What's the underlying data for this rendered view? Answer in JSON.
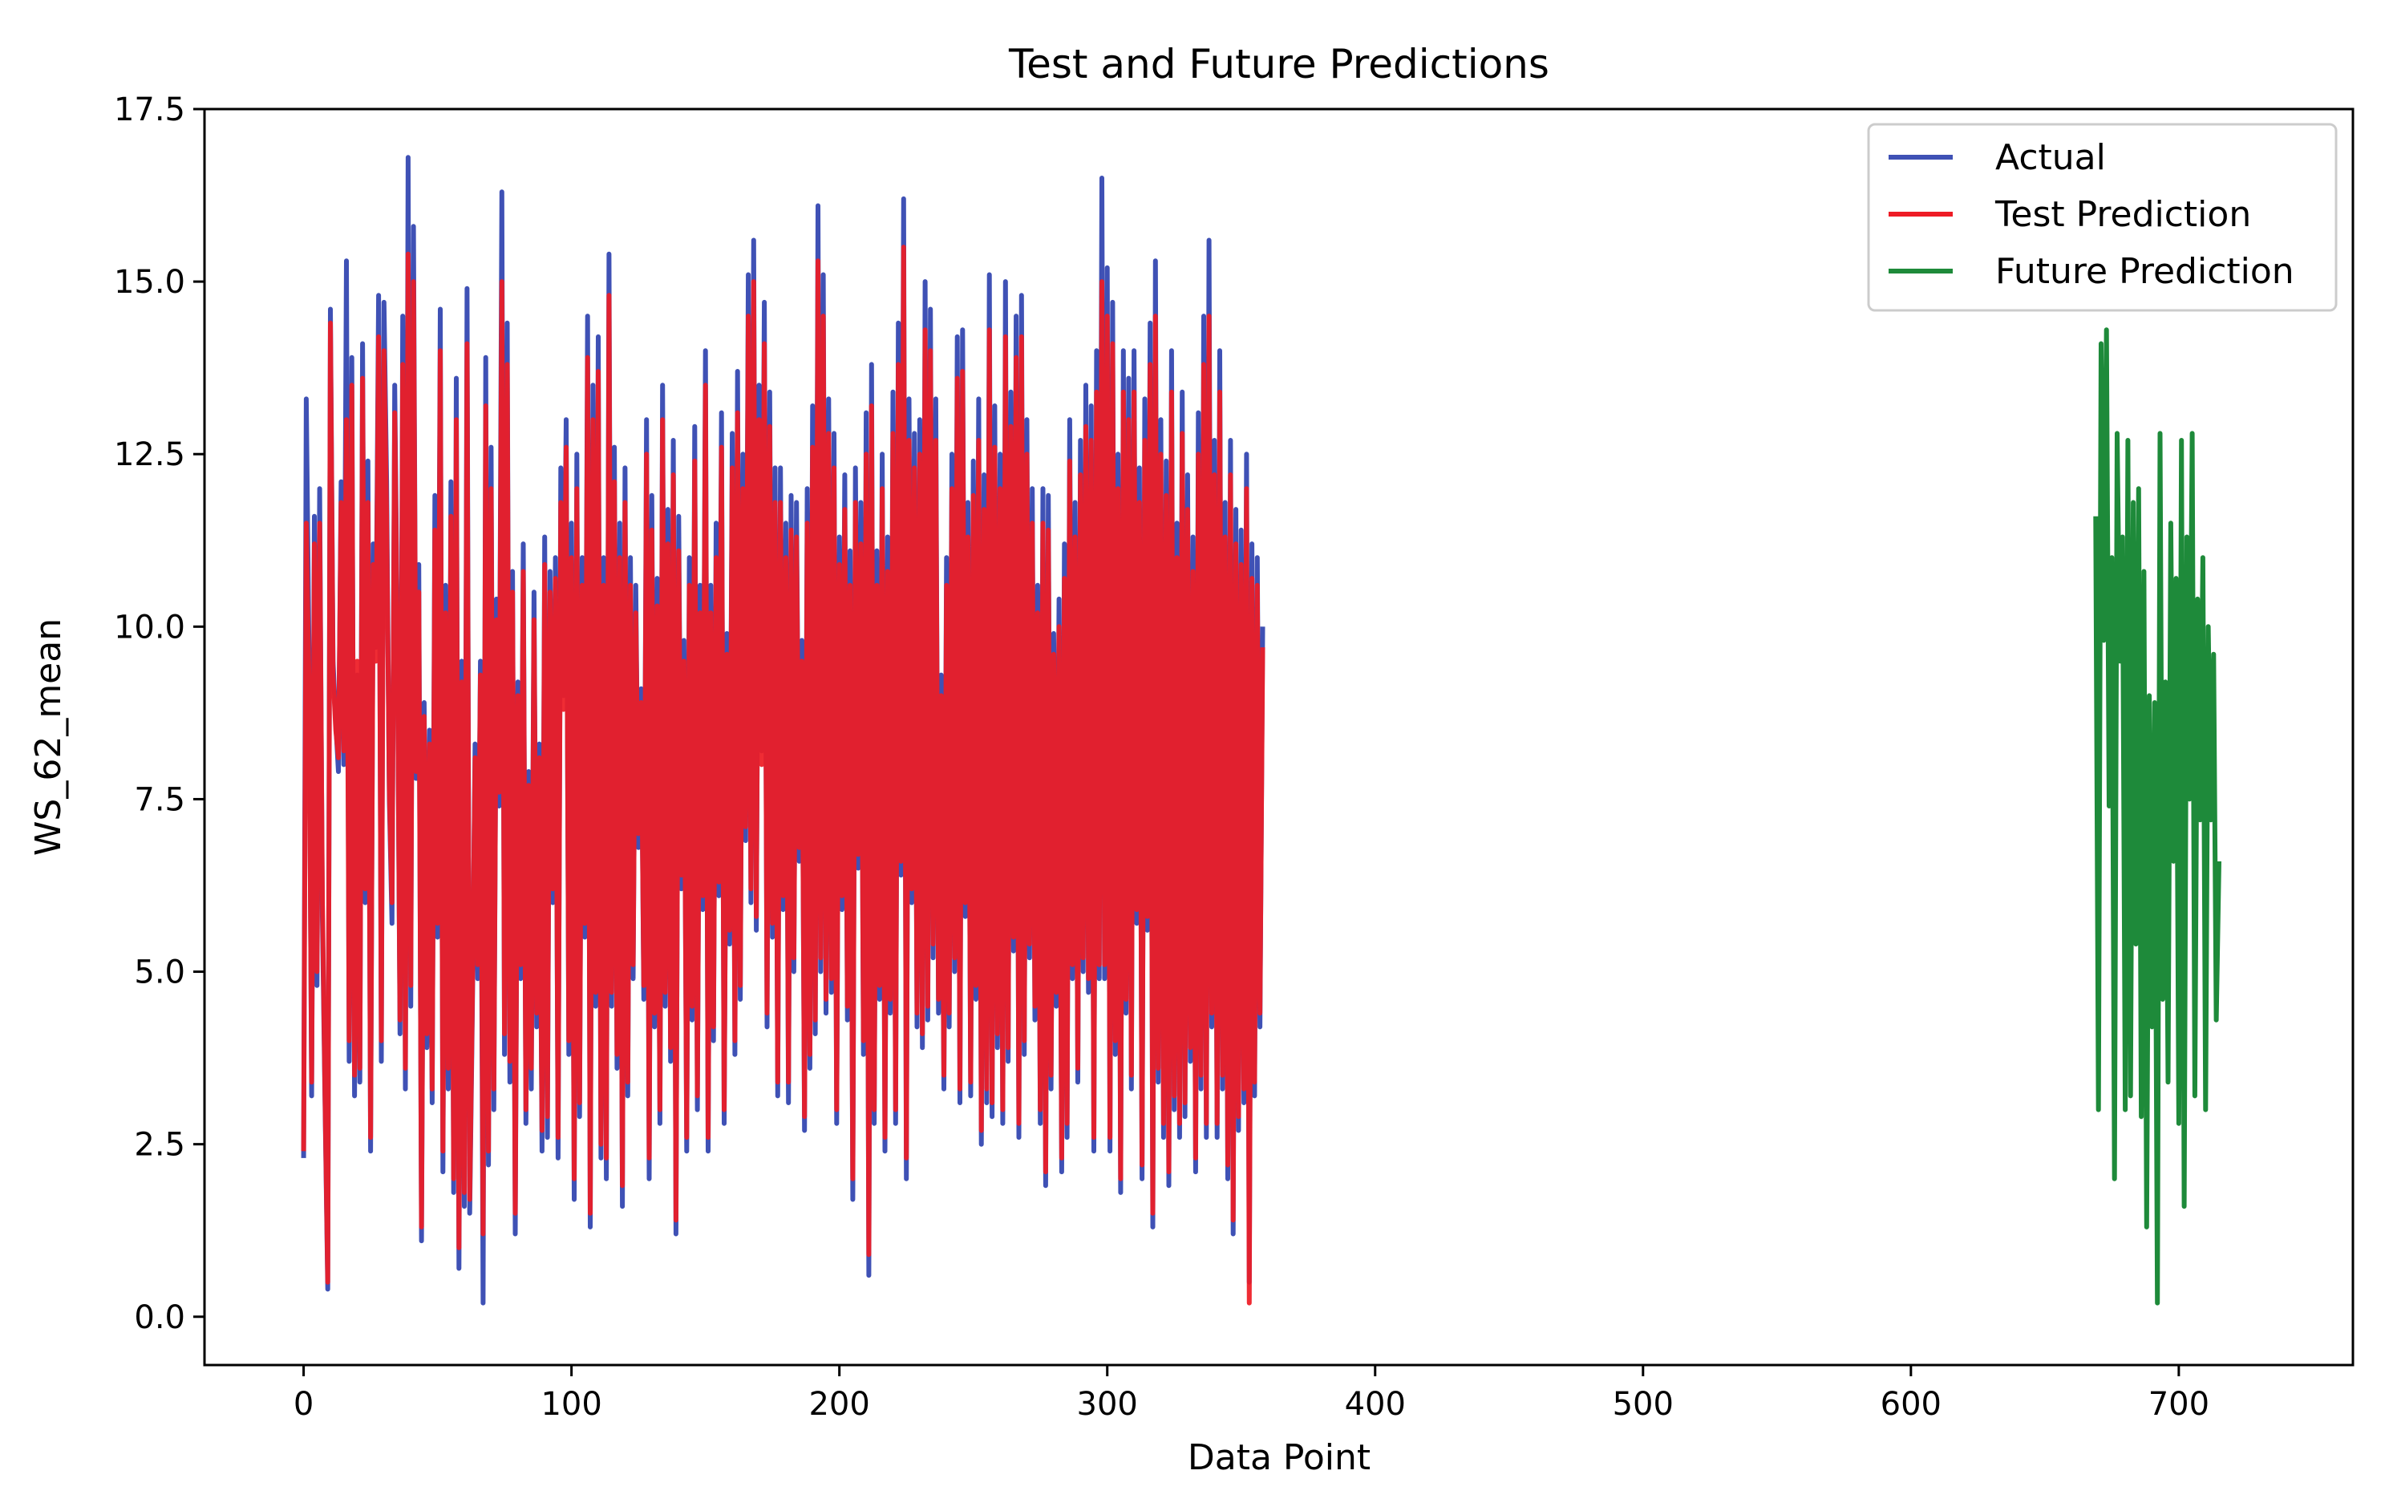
{
  "chart_data": {
    "type": "line",
    "title": "Test and Future Predictions",
    "xlabel": "Data Point",
    "ylabel": "WS_62_mean",
    "xlim": [
      -37,
      765
    ],
    "ylim": [
      -0.7,
      17.5
    ],
    "x_ticks": [
      0,
      100,
      200,
      300,
      400,
      500,
      600,
      700
    ],
    "x_tick_labels": [
      "0",
      "100",
      "200",
      "300",
      "400",
      "500",
      "600",
      "700"
    ],
    "y_ticks": [
      0,
      2.5,
      5,
      7.5,
      10,
      12.5,
      15,
      17.5
    ],
    "y_tick_labels": [
      "0.0",
      "2.5",
      "5.0",
      "7.5",
      "10.0",
      "12.5",
      "15.0",
      "17.5"
    ],
    "grid": false,
    "legend_position": "upper right",
    "legend": [
      "Actual",
      "Test Prediction",
      "Future Prediction"
    ],
    "colors": {
      "actual": "#3f51b5",
      "test": "#ee1c25",
      "future": "#1e8a3a"
    },
    "series": [
      {
        "name": "Actual",
        "x_start": 0,
        "values": [
          2.3,
          13.3,
          9.6,
          3.2,
          11.6,
          4.8,
          12.0,
          5.8,
          3.1,
          0.4,
          14.6,
          9.5,
          8.6,
          7.9,
          12.1,
          8.0,
          15.3,
          3.7,
          13.9,
          3.2,
          9.3,
          3.4,
          14.1,
          6.0,
          12.4,
          2.4,
          11.2,
          9.7,
          14.8,
          3.7,
          14.7,
          12.1,
          7.5,
          5.7,
          13.5,
          9.9,
          4.1,
          14.5,
          3.3,
          16.8,
          4.5,
          15.8,
          7.8,
          10.9,
          1.1,
          8.9,
          3.9,
          8.5,
          3.1,
          11.9,
          5.5,
          14.6,
          2.1,
          10.6,
          3.3,
          12.1,
          1.8,
          13.6,
          0.7,
          9.5,
          1.6,
          14.9,
          1.5,
          4.4,
          8.3,
          4.9,
          9.5,
          0.2,
          13.9,
          2.2,
          12.6,
          3.0,
          10.4,
          7.4,
          16.3,
          3.8,
          14.4,
          3.4,
          10.8,
          1.2,
          9.2,
          4.9,
          11.2,
          2.8,
          7.9,
          3.3,
          10.5,
          4.2,
          8.3,
          2.4,
          11.3,
          2.6,
          10.8,
          6.0,
          11.0,
          2.3,
          12.3,
          9.0,
          13.0,
          3.8,
          11.5,
          1.7,
          12.5,
          2.9,
          11.0,
          5.5,
          14.5,
          1.3,
          13.5,
          4.5,
          14.2,
          2.3,
          11.0,
          2.0,
          15.4,
          4.5,
          12.6,
          3.6,
          11.5,
          1.6,
          12.3,
          3.2,
          11.0,
          4.9,
          10.6,
          6.8,
          9.1,
          4.6,
          13.0,
          2.0,
          11.9,
          4.2,
          10.7,
          2.8,
          13.5,
          4.5,
          11.7,
          3.7,
          12.7,
          1.2,
          11.6,
          6.2,
          9.8,
          2.4,
          11.0,
          4.3,
          12.9,
          3.0,
          10.6,
          5.9,
          14.0,
          2.4,
          10.6,
          4.0,
          11.5,
          6.1,
          13.1,
          2.8,
          9.9,
          5.4,
          12.8,
          3.8,
          13.7,
          4.6,
          12.5,
          6.9,
          15.1,
          6.0,
          15.6,
          5.6,
          13.5,
          8.2,
          14.7,
          4.2,
          13.4,
          5.5,
          12.3,
          3.2,
          12.3,
          5.9,
          11.5,
          3.1,
          11.9,
          5.0,
          11.8,
          6.6,
          9.8,
          2.7,
          12.0,
          3.6,
          13.2,
          4.1,
          16.1,
          5.0,
          15.1,
          4.4,
          13.3,
          4.7,
          12.8,
          2.8,
          11.3,
          5.9,
          12.2,
          4.3,
          11.1,
          1.7,
          12.3,
          6.5,
          11.8,
          3.8,
          13.1,
          0.6,
          13.8,
          2.8,
          11.1,
          4.6,
          12.5,
          2.4,
          11.3,
          4.4,
          13.4,
          2.8,
          14.4,
          6.4,
          16.2,
          2.0,
          13.3,
          6.0,
          12.8,
          4.2,
          13.0,
          3.9,
          15.0,
          4.3,
          14.6,
          5.2,
          13.3,
          4.4,
          9.3,
          3.3,
          11.0,
          4.2,
          12.5,
          5.0,
          14.2,
          3.1,
          14.3,
          5.8,
          11.8,
          3.2,
          12.4,
          4.6,
          13.3,
          2.5,
          12.2,
          3.1,
          15.1,
          2.9,
          13.2,
          3.9,
          12.5,
          2.8,
          15.0,
          3.7,
          13.4,
          5.3,
          14.5,
          2.6,
          14.8,
          3.8,
          13.0,
          5.2,
          12.0,
          4.3,
          10.6,
          2.8,
          12.0,
          1.9,
          11.9,
          3.3,
          9.9,
          4.5,
          10.4,
          2.1,
          11.2,
          2.6,
          13.0,
          4.9,
          11.8,
          3.4,
          12.7,
          5.0,
          13.5,
          4.7,
          13.2,
          2.4,
          14.0,
          4.9,
          16.5,
          4.9,
          15.2,
          2.4,
          14.7,
          3.8,
          12.5,
          1.8,
          14.0,
          4.4,
          13.6,
          3.3,
          14.0,
          5.7,
          12.3,
          2.0,
          13.3,
          5.6,
          14.4,
          1.3,
          15.3,
          3.4,
          13.0,
          2.6,
          12.4,
          1.9,
          14.0,
          3.0,
          11.5,
          2.6,
          13.4,
          2.9,
          12.2,
          3.7,
          11.3,
          2.1,
          13.1,
          3.3,
          14.5,
          2.6,
          15.6,
          4.2,
          12.7,
          2.6,
          14.0,
          3.3,
          11.8,
          2.0,
          12.7,
          1.2,
          11.7,
          2.7,
          11.4,
          3.1,
          12.5,
          0.5,
          11.2,
          3.2,
          11.0,
          4.2,
          10.0
        ],
        "x_values_note": ""
      },
      {
        "name": "Test Prediction",
        "x_start": 0,
        "values": [
          2.4,
          11.5,
          9.2,
          3.4,
          11.2,
          5.0,
          11.5,
          6.1,
          3.2,
          0.5,
          14.4,
          9.3,
          8.5,
          8.1,
          11.8,
          8.2,
          13.0,
          4.0,
          13.5,
          3.5,
          9.5,
          3.6,
          13.6,
          6.2,
          11.8,
          2.6,
          10.9,
          9.5,
          14.2,
          4.0,
          14.0,
          11.6,
          7.6,
          6.0,
          13.1,
          9.7,
          4.3,
          13.8,
          3.6,
          15.4,
          4.8,
          15.0,
          7.9,
          10.5,
          1.3,
          8.7,
          4.1,
          8.3,
          3.3,
          11.4,
          5.7,
          14.0,
          2.4,
          10.2,
          3.6,
          11.6,
          2.0,
          13.0,
          1.0,
          9.2,
          1.8,
          14.1,
          1.7,
          4.6,
          8.1,
          5.1,
          9.3,
          1.2,
          13.2,
          2.4,
          12.0,
          3.3,
          10.1,
          7.6,
          15.0,
          4.1,
          13.8,
          3.7,
          10.5,
          1.5,
          9.0,
          5.1,
          10.8,
          3.0,
          7.7,
          3.6,
          10.1,
          4.4,
          8.1,
          2.7,
          10.9,
          2.9,
          10.5,
          6.2,
          10.7,
          2.6,
          11.8,
          8.8,
          12.6,
          4.0,
          11.0,
          2.0,
          12.0,
          3.1,
          10.6,
          5.7,
          13.9,
          1.5,
          13.0,
          4.7,
          13.7,
          2.5,
          10.6,
          2.3,
          14.8,
          4.7,
          12.1,
          3.8,
          11.0,
          1.9,
          11.8,
          3.4,
          10.6,
          5.1,
          10.2,
          7.0,
          8.9,
          4.8,
          12.5,
          2.3,
          11.4,
          4.4,
          10.3,
          3.0,
          13.0,
          4.7,
          11.2,
          3.9,
          12.2,
          1.4,
          11.1,
          6.4,
          9.5,
          2.6,
          10.6,
          4.5,
          12.4,
          3.2,
          10.2,
          6.1,
          13.5,
          2.6,
          10.2,
          4.2,
          11.0,
          6.3,
          12.6,
          3.0,
          9.6,
          5.6,
          12.3,
          4.0,
          13.1,
          4.8,
          12.0,
          7.1,
          14.5,
          6.2,
          15.0,
          5.8,
          13.0,
          8.0,
          14.1,
          4.4,
          12.9,
          5.7,
          11.8,
          3.4,
          11.8,
          6.1,
          11.0,
          3.4,
          11.4,
          5.2,
          11.3,
          6.8,
          9.5,
          2.9,
          11.5,
          3.8,
          12.6,
          4.3,
          15.3,
          5.2,
          14.5,
          4.6,
          12.8,
          4.9,
          12.3,
          3.0,
          10.9,
          6.1,
          11.7,
          4.5,
          10.6,
          2.0,
          11.8,
          6.7,
          11.2,
          4.0,
          12.5,
          0.9,
          13.2,
          3.0,
          10.6,
          4.8,
          12.0,
          2.6,
          10.8,
          4.6,
          12.8,
          3.0,
          13.8,
          6.6,
          15.5,
          2.3,
          12.7,
          6.2,
          12.3,
          4.4,
          12.5,
          4.1,
          14.3,
          4.5,
          14.0,
          5.4,
          12.7,
          4.6,
          9.0,
          3.5,
          10.6,
          4.4,
          12.0,
          5.2,
          13.6,
          3.3,
          13.7,
          6.0,
          11.3,
          3.4,
          11.9,
          4.8,
          12.7,
          2.7,
          11.7,
          3.3,
          14.3,
          3.1,
          12.6,
          4.1,
          12.0,
          3.0,
          14.2,
          3.9,
          12.9,
          5.5,
          13.9,
          2.8,
          14.2,
          4.0,
          12.5,
          5.4,
          11.5,
          4.5,
          10.2,
          3.0,
          11.5,
          2.1,
          11.4,
          3.5,
          9.6,
          4.7,
          10.0,
          2.3,
          10.7,
          2.8,
          12.4,
          5.1,
          11.3,
          3.6,
          12.2,
          5.2,
          12.9,
          4.9,
          12.7,
          2.6,
          13.4,
          5.1,
          15.0,
          5.1,
          14.5,
          2.6,
          14.1,
          4.0,
          12.0,
          2.0,
          13.4,
          4.6,
          13.0,
          3.5,
          13.4,
          5.9,
          11.8,
          2.2,
          12.7,
          5.8,
          13.8,
          1.5,
          14.5,
          3.6,
          12.5,
          2.8,
          11.9,
          2.1,
          13.4,
          3.2,
          11.0,
          2.8,
          12.8,
          3.1,
          11.7,
          3.9,
          10.8,
          2.3,
          12.5,
          3.5,
          13.8,
          2.8,
          14.5,
          4.4,
          12.2,
          2.8,
          13.4,
          3.5,
          11.3,
          2.2,
          12.2,
          1.4,
          11.2,
          2.9,
          10.9,
          3.3,
          12.0,
          0.2,
          10.7,
          3.4,
          10.6,
          4.4,
          9.7
        ],
        "x_values_note": ""
      },
      {
        "name": "Future Prediction",
        "x_start": 669,
        "values": [
          11.6,
          3.0,
          14.1,
          9.8,
          14.3,
          7.4,
          11.0,
          2.0,
          12.8,
          9.5,
          11.3,
          3.0,
          12.7,
          3.2,
          11.8,
          5.4,
          12.0,
          2.9,
          10.8,
          1.3,
          9.0,
          4.2,
          8.9,
          0.2,
          12.8,
          4.6,
          9.2,
          3.4,
          11.5,
          6.6,
          10.7,
          2.8,
          12.7,
          1.6,
          11.3,
          7.5,
          12.8,
          3.2,
          10.4,
          7.2,
          11.0,
          3.0,
          10.0,
          7.2,
          9.6,
          4.3,
          6.6
        ],
        "x_values_note": ""
      }
    ]
  }
}
